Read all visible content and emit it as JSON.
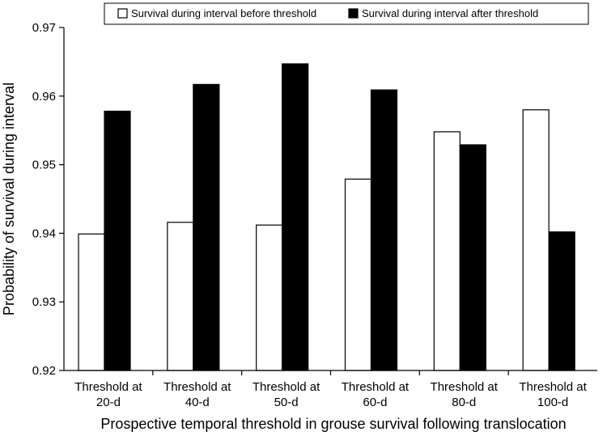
{
  "chart_data": {
    "type": "bar",
    "categories": [
      [
        "Threshold at",
        "20-d"
      ],
      [
        "Threshold at",
        "40-d"
      ],
      [
        "Threshold at",
        "50-d"
      ],
      [
        "Threshold at",
        "60-d"
      ],
      [
        "Threshold at",
        "80-d"
      ],
      [
        "Threshold at",
        "100-d"
      ]
    ],
    "series": [
      {
        "name": "Survival during interval before threshold",
        "color": "#ffffff",
        "values": [
          0.9399,
          0.9416,
          0.9412,
          0.9479,
          0.9548,
          0.958
        ]
      },
      {
        "name": "Survival during interval after threshold",
        "color": "#000000",
        "values": [
          0.9578,
          0.9617,
          0.9647,
          0.9609,
          0.9529,
          0.9402
        ]
      }
    ],
    "xlabel": "Prospective temporal threshold in grouse survival following translocation",
    "ylabel": "Probability of survival during interval",
    "ylim": [
      0.92,
      0.97
    ],
    "yticks": [
      "0.92",
      "0.93",
      "0.94",
      "0.95",
      "0.96",
      "0.97"
    ],
    "grid": false,
    "legend_position": "top"
  }
}
